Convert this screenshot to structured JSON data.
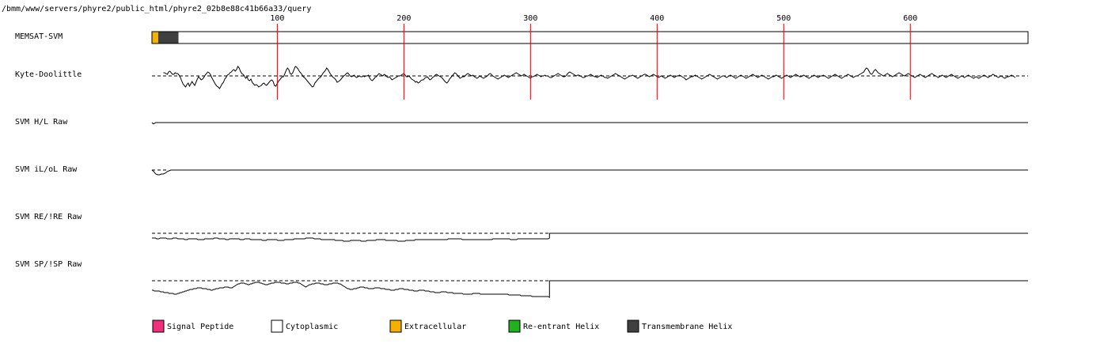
{
  "path_title": "/bmm/www/servers/phyre2/public_html/phyre2_02b8e88c41b66a33/query",
  "chart_data": {
    "type": "line",
    "x_range": [
      1,
      693
    ],
    "x_ticks": [
      100,
      200,
      300,
      400,
      500,
      600
    ],
    "tick_color": "#dd0000",
    "tracks": [
      {
        "key": "memsat",
        "label": "MEMSAT-SVM"
      },
      {
        "key": "kd",
        "label": "Kyte-Doolittle"
      },
      {
        "key": "hl",
        "label": "SVM H/L Raw"
      },
      {
        "key": "ilol",
        "label": "SVM iL/oL Raw"
      },
      {
        "key": "reire",
        "label": "SVM RE/!RE Raw"
      },
      {
        "key": "spisp",
        "label": "SVM SP/!SP Raw"
      }
    ],
    "memsat_segments": [
      {
        "start": 1,
        "end": 5,
        "type": "Extracellular"
      },
      {
        "start": 6,
        "end": 21,
        "type": "Transmembrane Helix"
      },
      {
        "start": 22,
        "end": 693,
        "type": "Cytoplasmic"
      }
    ],
    "kyte_doolittle": {
      "x_start": 10,
      "x_end": 683,
      "baseline_visible": true,
      "dev": [
        4,
        4,
        3,
        2,
        5,
        6,
        4,
        2,
        2,
        4,
        3,
        3,
        1,
        -2,
        -6,
        -10,
        -12,
        -14,
        -11,
        -9,
        -13,
        -10,
        -7,
        -10,
        -12,
        -8,
        -4,
        -1,
        -3,
        -5,
        -4,
        -2,
        1,
        3,
        5,
        4,
        2,
        -2,
        -5,
        -8,
        -11,
        -13,
        -14,
        -16,
        -13,
        -10,
        -8,
        -4,
        -2,
        1,
        2,
        4,
        5,
        7,
        8,
        6,
        8,
        12,
        10,
        6,
        3,
        2,
        0,
        -3,
        -1,
        -5,
        -6,
        -4,
        -8,
        -10,
        -12,
        -11,
        -12,
        -14,
        -13,
        -12,
        -10,
        -9,
        -11,
        -12,
        -10,
        -8,
        -6,
        -5,
        -7,
        -12,
        -13,
        -10,
        -7,
        -5,
        -3,
        -1,
        -1,
        3,
        7,
        10,
        8,
        3,
        2,
        4,
        8,
        12,
        11,
        9,
        6,
        4,
        2,
        -1,
        -2,
        -4,
        -6,
        -8,
        -10,
        -12,
        -14,
        -13,
        -9,
        -7,
        -5,
        -3,
        -2,
        0,
        3,
        5,
        7,
        10,
        8,
        5,
        2,
        0,
        -2,
        -3,
        -5,
        -8,
        -7,
        -6,
        -4,
        -2,
        0,
        1,
        3,
        4,
        2,
        0,
        -1,
        0,
        1,
        -1,
        -2,
        -1,
        0,
        -1,
        -1,
        0,
        -1,
        0,
        0,
        1,
        -3,
        -5,
        -6,
        -4,
        -2,
        -1,
        1,
        3,
        2,
        1,
        0,
        2,
        1,
        -1,
        -2,
        -1,
        -3,
        -5,
        -4,
        -3,
        -2,
        -1,
        0,
        0,
        1,
        2,
        3,
        1,
        -1,
        -1,
        0,
        -2,
        -4,
        -5,
        -6,
        -8,
        -7,
        -9,
        -8,
        -6,
        -5,
        -5,
        -3,
        -2,
        -1,
        -3,
        -5,
        -4,
        -2,
        -1,
        1,
        2,
        1,
        0,
        -1,
        -2,
        -4,
        -6,
        -8,
        -9,
        -7,
        -4,
        -2,
        0,
        2,
        4,
        3,
        1,
        -1,
        -3,
        -2,
        -1,
        -1,
        0,
        2,
        3,
        2,
        1,
        0,
        1,
        -1,
        -2,
        -3,
        -2,
        0,
        -1,
        -2,
        -3,
        -2,
        -1,
        0,
        2,
        3,
        2,
        0,
        -1,
        -2,
        -3,
        -4,
        -3,
        -2,
        -1,
        0,
        1,
        0,
        -1,
        -2,
        -1,
        0,
        1,
        2,
        3,
        4,
        3,
        2,
        1,
        0,
        1,
        2,
        1,
        0,
        -1,
        -2,
        -3,
        -1,
        -1,
        0,
        1,
        2,
        1,
        0,
        -1,
        0,
        0,
        1,
        0,
        0,
        -1,
        -2,
        -2,
        -1,
        0,
        1,
        2,
        3,
        2,
        1,
        0,
        -1,
        -1,
        0,
        2,
        4,
        5,
        4,
        3,
        2,
        1,
        0,
        1,
        1,
        0,
        -1,
        -2,
        -2,
        -1,
        0,
        0,
        1,
        2,
        1,
        0,
        -1,
        -1,
        -2,
        -1,
        0,
        1,
        0,
        -1,
        -2,
        -2,
        -3,
        -2,
        -1,
        0,
        1,
        2,
        3,
        2,
        1,
        0,
        -1,
        -2,
        -3,
        -4,
        -3,
        -2,
        -1,
        0,
        0,
        1,
        0,
        -1,
        -2,
        -3,
        -2,
        -1,
        0,
        1,
        2,
        2,
        1,
        0,
        -1,
        0,
        1,
        2,
        1,
        0,
        -1,
        -2,
        -1,
        0,
        -1,
        -2,
        -3,
        -2,
        -1,
        0,
        1,
        0,
        -1,
        -2,
        -1,
        0,
        0,
        1,
        0,
        -1,
        -2,
        -3,
        -5,
        -4,
        -3,
        -2,
        -1,
        -1,
        0,
        1,
        0,
        -1,
        -2,
        -3,
        -4,
        -3,
        -2,
        -1,
        0,
        1,
        2,
        1,
        0,
        -1,
        -2,
        -3,
        -4,
        -3,
        -2,
        -1,
        0,
        0,
        -1,
        -2,
        -1,
        0,
        1,
        0,
        -1,
        -2,
        -3,
        -2,
        -1,
        0,
        1,
        0,
        -1,
        -2,
        -3,
        -2,
        -1,
        0,
        1,
        2,
        1,
        0,
        -1,
        -2,
        -1,
        0,
        1,
        0,
        -1,
        -2,
        -3,
        -4,
        -3,
        -2,
        -1,
        -1,
        0,
        1,
        0,
        -1,
        -2,
        -3,
        -2,
        -1,
        0,
        1,
        0,
        -1,
        -2,
        -1,
        0,
        1,
        2,
        1,
        0,
        -1,
        -1,
        0,
        1,
        0,
        -1,
        -2,
        -3,
        -2,
        -1,
        0,
        1,
        0,
        -1,
        -2,
        -1,
        0,
        0,
        1,
        0,
        -1,
        -2,
        -3,
        -2,
        -1,
        0,
        1,
        2,
        1,
        0,
        -1,
        -2,
        -3,
        -2,
        -1,
        0,
        1,
        2,
        1,
        0,
        -1,
        -2,
        -1,
        0,
        0,
        1,
        2,
        3,
        4,
        5,
        8,
        10,
        9,
        6,
        3,
        2,
        4,
        7,
        8,
        6,
        4,
        3,
        2,
        1,
        0,
        1,
        2,
        3,
        2,
        1,
        0,
        -1,
        0,
        1,
        2,
        3,
        4,
        3,
        2,
        1,
        0,
        1,
        2,
        3,
        2,
        1,
        0,
        -1,
        -2,
        -1,
        0,
        1,
        2,
        1,
        0,
        -1,
        -2,
        -1,
        0,
        1,
        2,
        3,
        2,
        1,
        0,
        -1,
        -2,
        -1,
        0,
        1,
        0,
        -1,
        -2,
        -1,
        0,
        1,
        2,
        1,
        0,
        -1,
        -2,
        -3,
        -2,
        -1,
        0,
        -1,
        -2,
        -1,
        0,
        1,
        0,
        -1,
        -2,
        -3,
        -2,
        -1,
        -2,
        -3,
        -2,
        -1,
        0,
        1,
        0,
        -1,
        -2,
        -1,
        0,
        1,
        2,
        1,
        0,
        -1,
        -2,
        -1,
        0,
        -1,
        -2,
        -3,
        -2,
        -1,
        -1,
        0,
        1,
        0,
        -1,
        -2
      ]
    },
    "svm_hl": {
      "x_start": 1,
      "start_dip": [
        0,
        -1.5,
        -1,
        0
      ]
    },
    "svm_ilol": {
      "x_start": 1,
      "start_dev": [
        0,
        -2,
        -5,
        -6,
        -6,
        -5,
        -5,
        -4,
        -2,
        -1,
        0,
        0
      ]
    },
    "svm_reire": {
      "x_start": 1,
      "x_end": 315,
      "dev": [
        6,
        6,
        6,
        6,
        7,
        7,
        7,
        6,
        6,
        6,
        6,
        6,
        6,
        7,
        7,
        7,
        7,
        7,
        6,
        6,
        6,
        6,
        7,
        7,
        7,
        7,
        7,
        7,
        8,
        8,
        8,
        7,
        7,
        7,
        7,
        7,
        7,
        7,
        7,
        8,
        8,
        8,
        8,
        8,
        8,
        7,
        7,
        7,
        7,
        7,
        7,
        7,
        7,
        6,
        6,
        6,
        6,
        7,
        7,
        7,
        7,
        7,
        7,
        8,
        8,
        8,
        7,
        7,
        7,
        7,
        7,
        7,
        7,
        7,
        7,
        8,
        8,
        8,
        8,
        7,
        7,
        7,
        7,
        7,
        8,
        8,
        8,
        8,
        8,
        8,
        8,
        8,
        8,
        8,
        9,
        9,
        9,
        9,
        8,
        8,
        8,
        8,
        8,
        8,
        8,
        8,
        8,
        9,
        9,
        9,
        9,
        9,
        9,
        8,
        8,
        8,
        8,
        8,
        8,
        8,
        8,
        7,
        7,
        7,
        7,
        7,
        7,
        7,
        7,
        7,
        7,
        6,
        6,
        6,
        6,
        6,
        6,
        6,
        7,
        7,
        7,
        7,
        7,
        7,
        8,
        8,
        8,
        8,
        8,
        8,
        8,
        8,
        8,
        8,
        8,
        8,
        9,
        9,
        9,
        9,
        9,
        9,
        9,
        10,
        10,
        10,
        10,
        10,
        10,
        9,
        9,
        9,
        9,
        9,
        9,
        9,
        9,
        9,
        10,
        10,
        10,
        10,
        10,
        9,
        9,
        9,
        9,
        9,
        9,
        9,
        9,
        8,
        8,
        8,
        8,
        8,
        8,
        8,
        8,
        9,
        9,
        9,
        9,
        9,
        9,
        9,
        9,
        9,
        9,
        10,
        10,
        10,
        10,
        10,
        10,
        10,
        9,
        9,
        9,
        9,
        9,
        9,
        9,
        9,
        8,
        8,
        8,
        8,
        8,
        8,
        8,
        8,
        8,
        8,
        8,
        8,
        8,
        8,
        8,
        8,
        8,
        8,
        8,
        8,
        8,
        8,
        8,
        8,
        8,
        8,
        8,
        8,
        7,
        7,
        7,
        7,
        7,
        7,
        7,
        7,
        7,
        7,
        7,
        7,
        8,
        8,
        8,
        8,
        8,
        8,
        8,
        8,
        8,
        8,
        8,
        8,
        8,
        8,
        8,
        8,
        8,
        8,
        8,
        8,
        8,
        8,
        8,
        8,
        8,
        8,
        7,
        7,
        7,
        7,
        7,
        7,
        7,
        7,
        7,
        7,
        7,
        7,
        7,
        7,
        7,
        8,
        8,
        8,
        8,
        8,
        8,
        7,
        7,
        7,
        7,
        7,
        7,
        7,
        7,
        7,
        7,
        7,
        7,
        7,
        7,
        7,
        7,
        7,
        7,
        7,
        7,
        7,
        7,
        7,
        7,
        7,
        7,
        7,
        6
      ]
    },
    "svm_spisp": {
      "x_start": 1,
      "x_end": 315,
      "dev": [
        12,
        12,
        13,
        13,
        13,
        13,
        13,
        14,
        14,
        14,
        15,
        15,
        15,
        15,
        16,
        16,
        16,
        16,
        17,
        17,
        17,
        16,
        16,
        15,
        15,
        14,
        14,
        13,
        13,
        12,
        12,
        11,
        11,
        11,
        10,
        10,
        10,
        9,
        9,
        9,
        9,
        10,
        10,
        10,
        10,
        11,
        11,
        11,
        12,
        12,
        11,
        11,
        10,
        10,
        10,
        9,
        9,
        9,
        9,
        8,
        8,
        8,
        8,
        9,
        9,
        9,
        8,
        7,
        6,
        5,
        4,
        4,
        3,
        3,
        3,
        3,
        4,
        4,
        5,
        5,
        4,
        4,
        3,
        3,
        2,
        2,
        2,
        2,
        3,
        3,
        4,
        4,
        5,
        5,
        5,
        4,
        4,
        3,
        3,
        3,
        2,
        2,
        2,
        2,
        2,
        3,
        3,
        3,
        3,
        4,
        4,
        4,
        3,
        3,
        3,
        2,
        2,
        2,
        2,
        3,
        3,
        4,
        5,
        6,
        7,
        8,
        7,
        6,
        5,
        5,
        4,
        4,
        4,
        3,
        3,
        3,
        3,
        4,
        4,
        4,
        5,
        5,
        5,
        5,
        4,
        4,
        4,
        3,
        3,
        3,
        3,
        3,
        4,
        4,
        5,
        6,
        7,
        8,
        9,
        10,
        10,
        11,
        11,
        11,
        10,
        10,
        10,
        9,
        9,
        8,
        8,
        8,
        8,
        9,
        9,
        9,
        10,
        10,
        10,
        10,
        10,
        9,
        9,
        9,
        9,
        9,
        10,
        10,
        10,
        10,
        11,
        11,
        11,
        11,
        12,
        12,
        12,
        12,
        11,
        11,
        11,
        10,
        10,
        10,
        10,
        11,
        11,
        11,
        11,
        12,
        12,
        12,
        12,
        13,
        13,
        13,
        13,
        12,
        12,
        12,
        12,
        12,
        13,
        13,
        13,
        13,
        14,
        14,
        14,
        14,
        15,
        15,
        15,
        15,
        15,
        14,
        14,
        14,
        14,
        14,
        15,
        15,
        15,
        15,
        15,
        16,
        16,
        16,
        16,
        16,
        16,
        16,
        16,
        17,
        17,
        17,
        17,
        17,
        17,
        17,
        17,
        16,
        16,
        16,
        16,
        16,
        16,
        17,
        17,
        17,
        17,
        17,
        17,
        17,
        17,
        17,
        17,
        17,
        17,
        17,
        17,
        17,
        17,
        17,
        17,
        17,
        17,
        17,
        17,
        17,
        18,
        18,
        18,
        18,
        18,
        18,
        18,
        18,
        18,
        18,
        19,
        19,
        19,
        19,
        19,
        19,
        19,
        19,
        19,
        20,
        20,
        20,
        20,
        20,
        20,
        20,
        20,
        20,
        20,
        20,
        20,
        20,
        20,
        21
      ]
    },
    "legend": [
      {
        "label": "Signal Peptide",
        "color": "#f0307c"
      },
      {
        "label": "Cytoplasmic",
        "color": "#ffffff"
      },
      {
        "label": "Extracellular",
        "color": "#f8b000"
      },
      {
        "label": "Re-entrant Helix",
        "color": "#20b020"
      },
      {
        "label": "Transmembrane Helix",
        "color": "#404040"
      }
    ]
  }
}
